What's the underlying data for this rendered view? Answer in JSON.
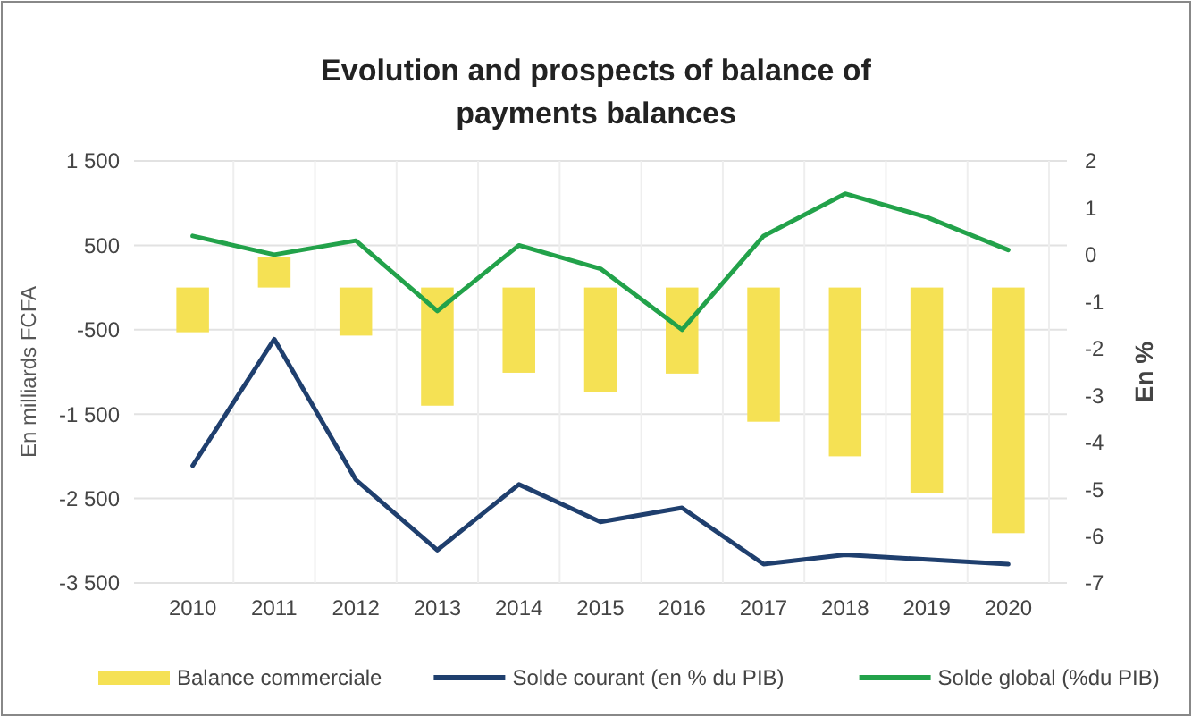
{
  "chart_data": {
    "type": "bar",
    "title": "Evolution and prospects of balance of payments balances",
    "ylabel": "En milliards FCFA",
    "y2label": "En %",
    "categories": [
      "2010",
      "2011",
      "2012",
      "2013",
      "2014",
      "2015",
      "2016",
      "2017",
      "2018",
      "2019",
      "2020"
    ],
    "series": [
      {
        "name": "Balance commerciale",
        "color": "#f5e154",
        "values": [
          -530,
          360,
          -570,
          -1400,
          -1010,
          -1240,
          -1020,
          -1590,
          -2000,
          -2440,
          -2910
        ]
      },
      {
        "name": "Solde courant (en % du PIB)",
        "type": "line",
        "axis": "y2",
        "color": "#1f3f6e",
        "values": [
          -4.5,
          -1.8,
          -4.8,
          -6.3,
          -4.9,
          -5.7,
          -5.4,
          -6.6,
          -6.4,
          -6.5,
          -6.6
        ]
      },
      {
        "name": "Solde global (%du PIB)",
        "type": "line",
        "axis": "y2",
        "color": "#22a24a",
        "values": [
          0.4,
          0,
          0.3,
          -1.2,
          0.2,
          -0.3,
          -1.6,
          0.4,
          1.3,
          0.8,
          0.1
        ]
      }
    ],
    "ylim": [
      -3500,
      1500
    ],
    "yticks": [
      {
        "value": 1500,
        "label": "1 500"
      },
      500,
      -500,
      {
        "value": -1500,
        "label": "-1 500"
      },
      {
        "value": -2500,
        "label": "-2 500"
      },
      {
        "value": -3500,
        "label": "-3 500"
      }
    ],
    "y2lim": [
      -7,
      2
    ],
    "y2ticks": [
      2,
      1,
      0,
      -1,
      -2,
      -3,
      -4,
      -5,
      -6,
      -7
    ],
    "grid": true,
    "legend": "bottom"
  }
}
